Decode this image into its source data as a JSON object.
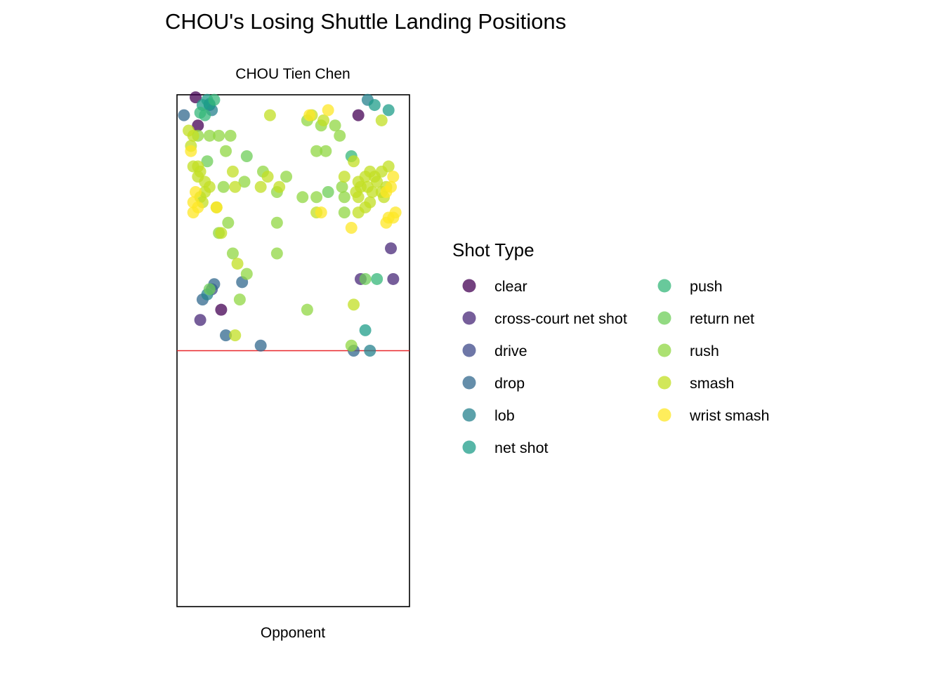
{
  "chart_data": {
    "type": "scatter",
    "title": "CHOU's Losing Shuttle Landing Positions",
    "top_label": "CHOU Tien Chen",
    "bottom_label": "Opponent",
    "xlim": [
      0,
      1
    ],
    "ylim": [
      0,
      1
    ],
    "grid": false,
    "legend": {
      "title": "Shot Type",
      "placement": "right",
      "columns": 2
    },
    "net_line": {
      "y": 0.5,
      "color": "#e8282b"
    },
    "marker_opacity": 0.75,
    "series": [
      {
        "name": "clear",
        "color": "#440154",
        "points": [
          [
            0.08,
            0.995
          ],
          [
            0.09,
            0.94
          ],
          [
            0.78,
            0.96
          ],
          [
            0.19,
            0.58
          ]
        ]
      },
      {
        "name": "cross-court net shot",
        "color": "#482878",
        "points": [
          [
            0.1,
            0.56
          ],
          [
            0.79,
            0.64
          ],
          [
            0.92,
            0.7
          ],
          [
            0.93,
            0.64
          ]
        ]
      },
      {
        "name": "drive",
        "color": "#3e4989",
        "points": [
          [
            0.15,
            0.62
          ]
        ]
      },
      {
        "name": "drop",
        "color": "#31688e",
        "points": [
          [
            0.28,
            0.634
          ],
          [
            0.21,
            0.53
          ],
          [
            0.11,
            0.6
          ],
          [
            0.36,
            0.51
          ],
          [
            0.76,
            0.5
          ],
          [
            0.16,
            0.63
          ],
          [
            0.03,
            0.96
          ]
        ]
      },
      {
        "name": "lob",
        "color": "#26828e",
        "points": [
          [
            0.82,
            0.99
          ],
          [
            0.15,
            0.97
          ],
          [
            0.83,
            0.5
          ],
          [
            0.13,
            0.61
          ],
          [
            0.14,
            0.98
          ]
        ]
      },
      {
        "name": "net shot",
        "color": "#1f9e89",
        "points": [
          [
            0.13,
            0.99
          ],
          [
            0.14,
            0.982
          ],
          [
            0.85,
            0.98
          ],
          [
            0.91,
            0.97
          ],
          [
            0.81,
            0.54
          ],
          [
            0.11,
            0.98
          ]
        ]
      },
      {
        "name": "push",
        "color": "#35b779",
        "points": [
          [
            0.1,
            0.965
          ],
          [
            0.75,
            0.88
          ],
          [
            0.16,
            0.99
          ],
          [
            0.12,
            0.96
          ],
          [
            0.86,
            0.64
          ]
        ]
      },
      {
        "name": "return net",
        "color": "#6ece58",
        "points": [
          [
            0.81,
            0.64
          ],
          [
            0.14,
            0.62
          ],
          [
            0.13,
            0.87
          ],
          [
            0.3,
            0.88
          ],
          [
            0.65,
            0.81
          ]
        ]
      },
      {
        "name": "rush",
        "color": "#90d743",
        "points": [
          [
            0.14,
            0.92
          ],
          [
            0.23,
            0.92
          ],
          [
            0.21,
            0.89
          ],
          [
            0.29,
            0.83
          ],
          [
            0.37,
            0.85
          ],
          [
            0.43,
            0.81
          ],
          [
            0.47,
            0.84
          ],
          [
            0.54,
            0.8
          ],
          [
            0.6,
            0.8
          ],
          [
            0.71,
            0.82
          ],
          [
            0.72,
            0.8
          ],
          [
            0.56,
            0.95
          ],
          [
            0.62,
            0.94
          ],
          [
            0.68,
            0.94
          ],
          [
            0.7,
            0.92
          ],
          [
            0.6,
            0.89
          ],
          [
            0.64,
            0.89
          ],
          [
            0.2,
            0.82
          ],
          [
            0.22,
            0.75
          ],
          [
            0.18,
            0.73
          ],
          [
            0.24,
            0.69
          ],
          [
            0.3,
            0.65
          ],
          [
            0.27,
            0.6
          ],
          [
            0.43,
            0.69
          ],
          [
            0.56,
            0.58
          ],
          [
            0.75,
            0.51
          ],
          [
            0.43,
            0.75
          ],
          [
            0.72,
            0.77
          ],
          [
            0.18,
            0.92
          ],
          [
            0.09,
            0.92
          ]
        ]
      },
      {
        "name": "smash",
        "color": "#c2df23",
        "points": [
          [
            0.09,
            0.86
          ],
          [
            0.1,
            0.85
          ],
          [
            0.12,
            0.83
          ],
          [
            0.14,
            0.82
          ],
          [
            0.1,
            0.8
          ],
          [
            0.12,
            0.81
          ],
          [
            0.11,
            0.79
          ],
          [
            0.24,
            0.85
          ],
          [
            0.25,
            0.82
          ],
          [
            0.36,
            0.82
          ],
          [
            0.39,
            0.84
          ],
          [
            0.44,
            0.82
          ],
          [
            0.58,
            0.96
          ],
          [
            0.63,
            0.95
          ],
          [
            0.76,
            0.87
          ],
          [
            0.72,
            0.84
          ],
          [
            0.78,
            0.83
          ],
          [
            0.81,
            0.84
          ],
          [
            0.83,
            0.85
          ],
          [
            0.85,
            0.84
          ],
          [
            0.88,
            0.85
          ],
          [
            0.91,
            0.86
          ],
          [
            0.77,
            0.81
          ],
          [
            0.79,
            0.82
          ],
          [
            0.82,
            0.82
          ],
          [
            0.84,
            0.81
          ],
          [
            0.86,
            0.83
          ],
          [
            0.88,
            0.81
          ],
          [
            0.9,
            0.82
          ],
          [
            0.89,
            0.8
          ],
          [
            0.78,
            0.8
          ],
          [
            0.83,
            0.79
          ],
          [
            0.19,
            0.73
          ],
          [
            0.26,
            0.67
          ],
          [
            0.4,
            0.96
          ],
          [
            0.88,
            0.95
          ],
          [
            0.07,
            0.92
          ],
          [
            0.17,
            0.78
          ],
          [
            0.81,
            0.78
          ],
          [
            0.78,
            0.77
          ],
          [
            0.6,
            0.77
          ],
          [
            0.05,
            0.93
          ],
          [
            0.06,
            0.9
          ],
          [
            0.07,
            0.86
          ],
          [
            0.09,
            0.84
          ],
          [
            0.76,
            0.59
          ],
          [
            0.25,
            0.53
          ]
        ]
      },
      {
        "name": "wrist smash",
        "color": "#fde725",
        "points": [
          [
            0.65,
            0.97
          ],
          [
            0.57,
            0.96
          ],
          [
            0.08,
            0.81
          ],
          [
            0.09,
            0.78
          ],
          [
            0.07,
            0.77
          ],
          [
            0.07,
            0.79
          ],
          [
            0.17,
            0.78
          ],
          [
            0.9,
            0.81
          ],
          [
            0.92,
            0.82
          ],
          [
            0.93,
            0.84
          ],
          [
            0.91,
            0.76
          ],
          [
            0.93,
            0.76
          ],
          [
            0.94,
            0.77
          ],
          [
            0.9,
            0.75
          ],
          [
            0.75,
            0.74
          ],
          [
            0.06,
            0.89
          ],
          [
            0.62,
            0.77
          ]
        ]
      }
    ]
  }
}
